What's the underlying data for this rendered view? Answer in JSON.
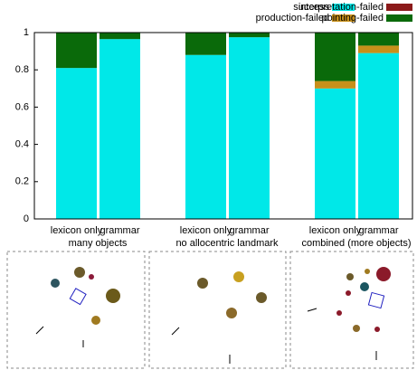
{
  "chart_data": {
    "type": "stacked-bar",
    "categories": [
      "lexicon only",
      "grammar",
      "lexicon only",
      "grammar",
      "lexicon only",
      "grammar"
    ],
    "groups": [
      "many objects",
      "no allocentric landmark",
      "combined (more objects)"
    ],
    "series": [
      {
        "name": "success",
        "color": "#00e8e8",
        "values": [
          0.81,
          0.965,
          0.88,
          0.975,
          0.7,
          0.89
        ]
      },
      {
        "name": "production-failed",
        "color": "#c8901a",
        "values": [
          0,
          0,
          0,
          0,
          0.04,
          0.04
        ]
      },
      {
        "name": "interpretation-failed",
        "color": "#8b1a1a",
        "values": [
          0,
          0,
          0,
          0,
          0,
          0
        ]
      },
      {
        "name": "pointing-failed",
        "color": "#0a6a0a",
        "values": [
          0.19,
          0.035,
          0.12,
          0.025,
          0.26,
          0.07
        ]
      }
    ],
    "ylim": [
      0,
      1
    ],
    "yticks": [
      0,
      0.2,
      0.4,
      0.6,
      0.8,
      1
    ]
  }
}
